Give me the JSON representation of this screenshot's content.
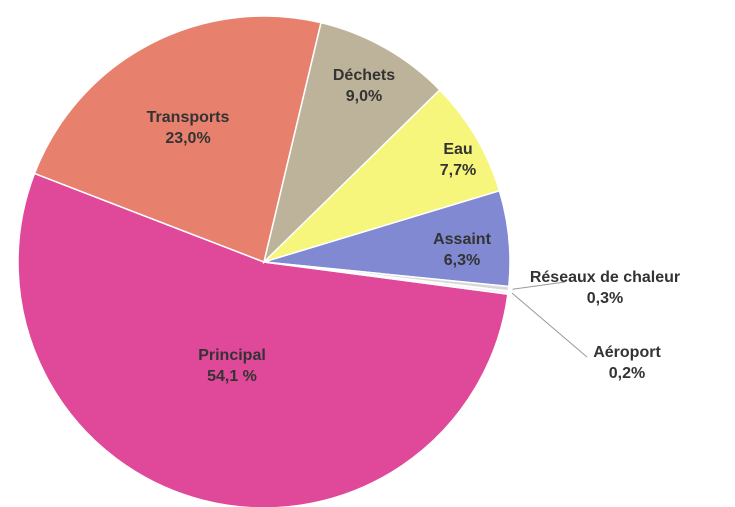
{
  "chart_data": {
    "type": "pie",
    "categories": [
      "Principal",
      "Transports",
      "Déchets",
      "Eau",
      "Assaint",
      "Réseaux de chaleur",
      "Aéroport"
    ],
    "values": [
      54.1,
      23.0,
      9.0,
      7.7,
      6.3,
      0.3,
      0.2
    ],
    "value_labels": [
      "54,1 %",
      "23,0%",
      "9,0%",
      "7,7%",
      "6,3%",
      "0,3%",
      "0,2%"
    ],
    "colors": [
      "#e0489a",
      "#e8806e",
      "#bdb39a",
      "#f6f57c",
      "#8089d2",
      "#d8d8d8",
      "#f4f4f4"
    ]
  }
}
